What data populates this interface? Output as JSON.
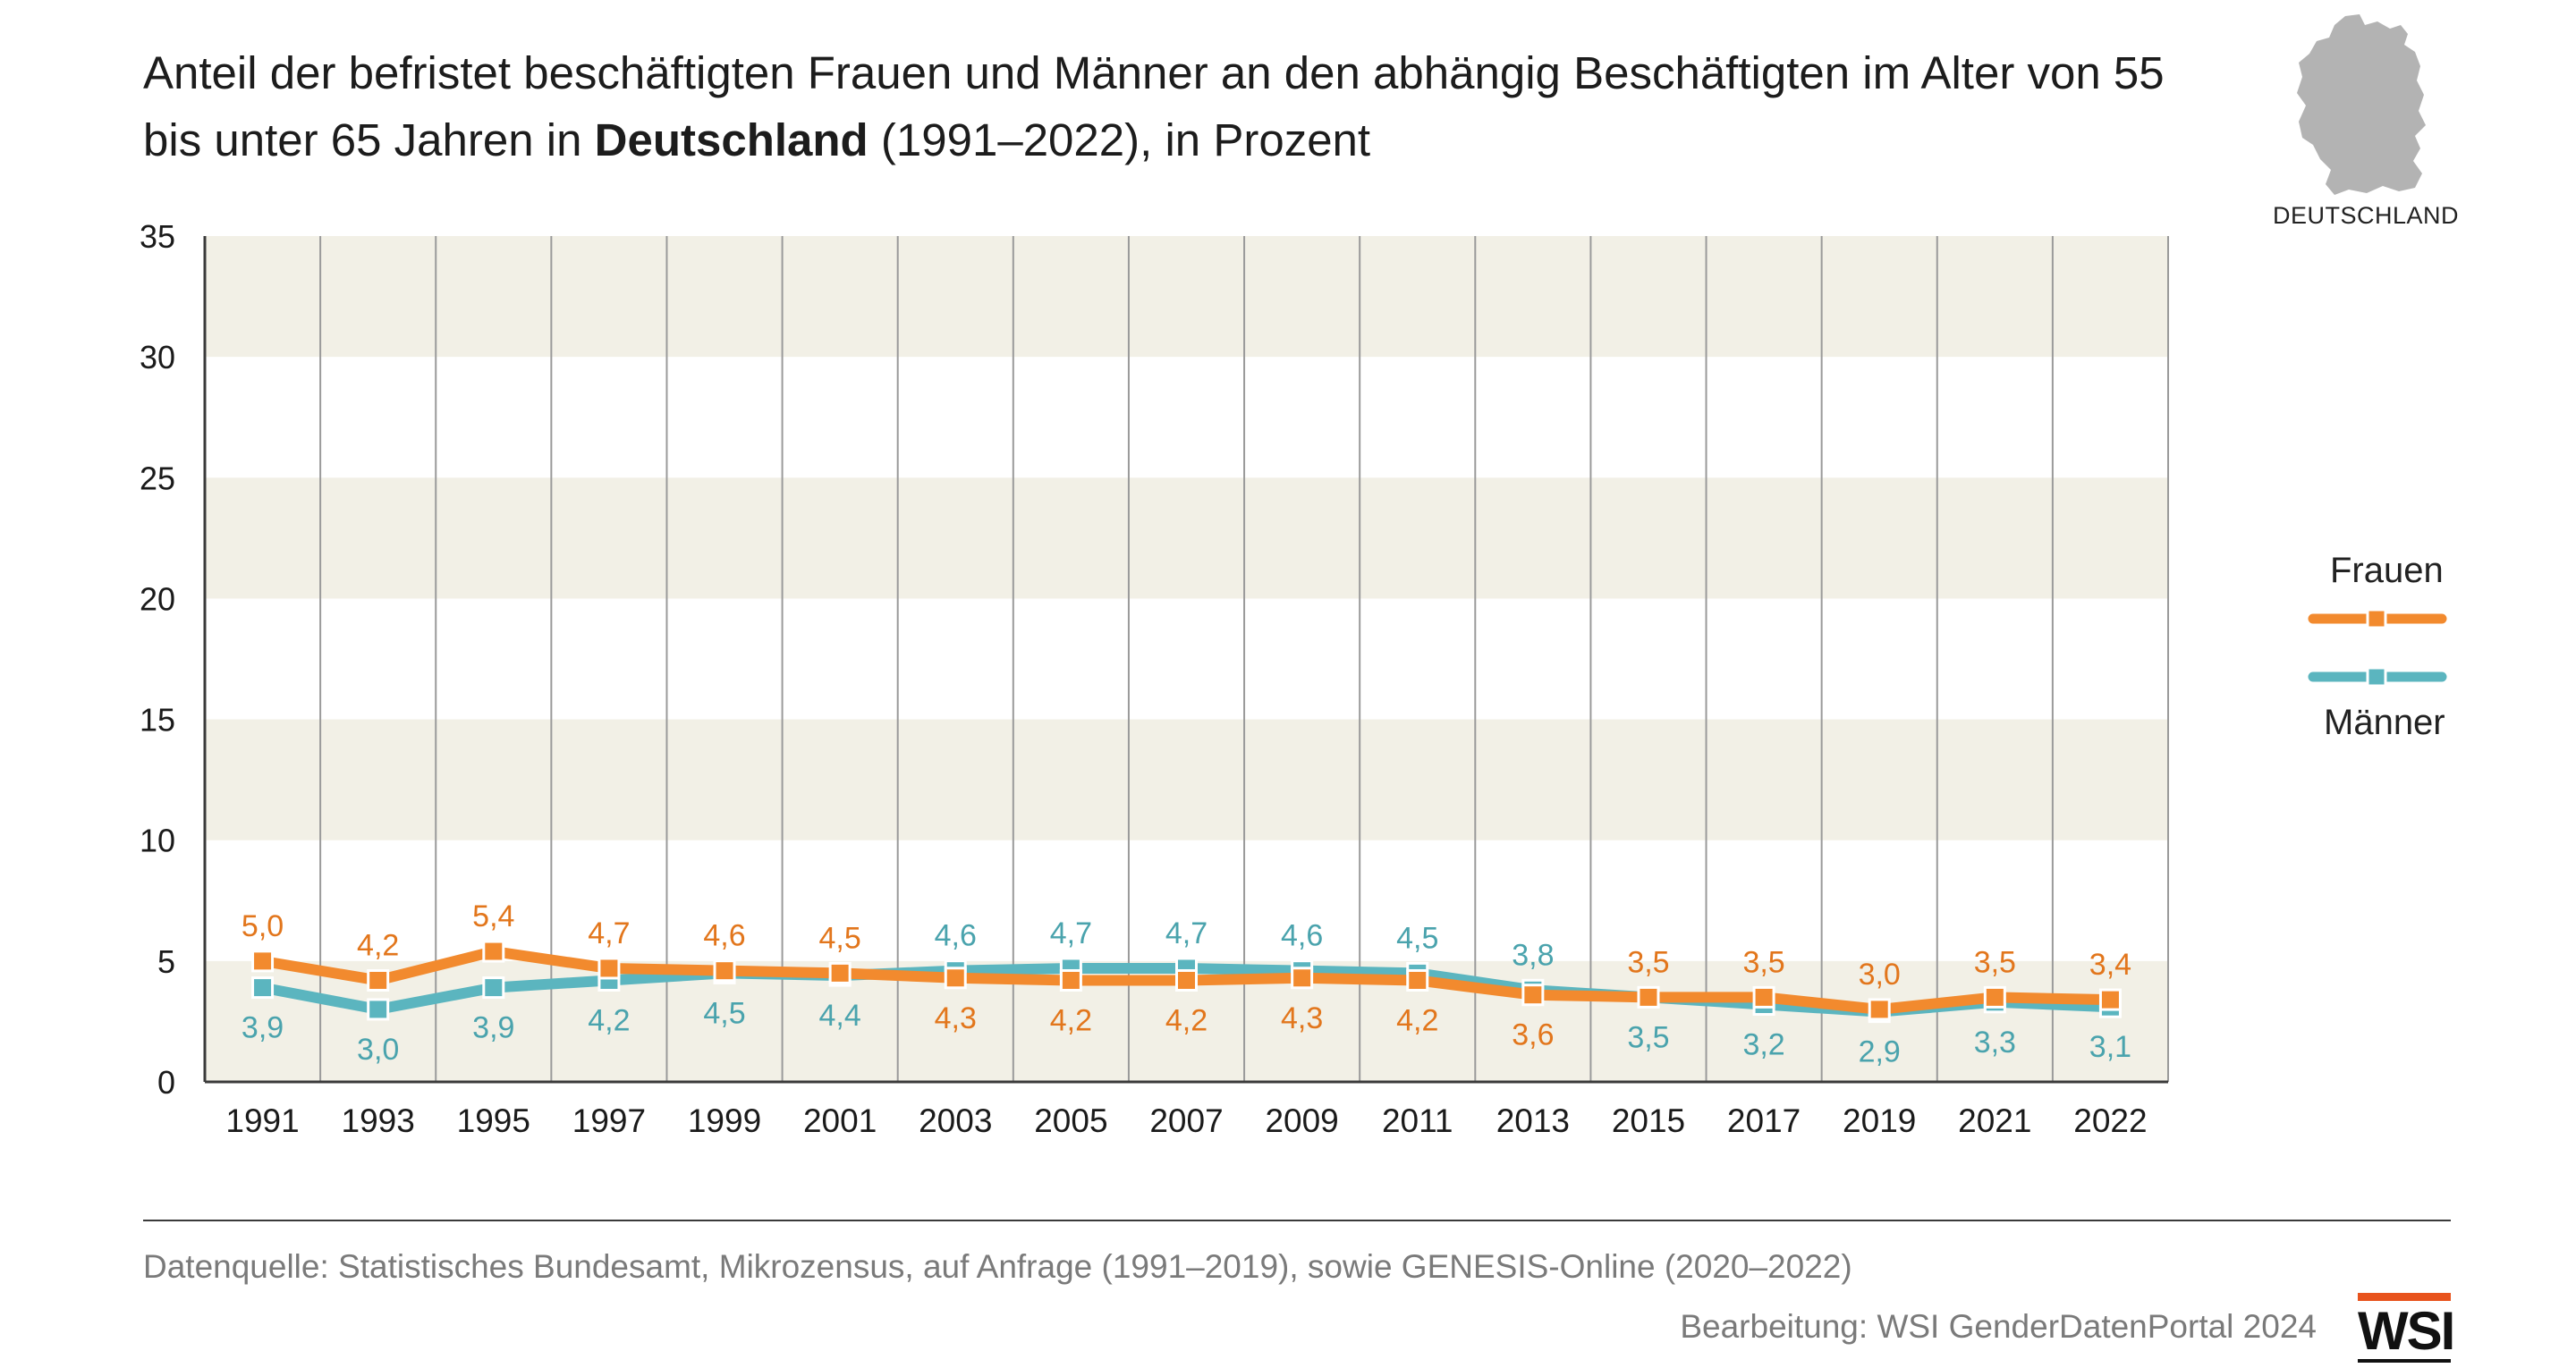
{
  "title": {
    "part1": "Anteil der befristet beschäftigten Frauen und Männer an den abhängig Beschäftigten im Alter von 55 bis unter 65 Jahren in ",
    "bold": "Deutschland",
    "part2": " (1991–2022), in Prozent"
  },
  "map": {
    "caption": "DEUTSCHLAND",
    "color": "#b3b3b3"
  },
  "legend": {
    "frauen": "Frauen",
    "maenner": "Männer"
  },
  "colors": {
    "frauen": "#f28a2e",
    "maenner": "#5bb5bf",
    "band": "#f2f0e6",
    "grid": "#9a9a9a",
    "frauen_label": "#e2761c",
    "maenner_label": "#4aa3ad"
  },
  "footer": {
    "source": "Datenquelle: Statistisches Bundesamt, Mikrozensus, auf Anfrage (1991–2019), sowie GENESIS-Online (2020–2022)",
    "credit": "Bearbeitung: WSI GenderDatenPortal 2024",
    "logo": "WSI"
  },
  "chart_data": {
    "type": "line",
    "x": [
      "1991",
      "1993",
      "1995",
      "1997",
      "1999",
      "2001",
      "2003",
      "2005",
      "2007",
      "2009",
      "2011",
      "2013",
      "2015",
      "2017",
      "2019",
      "2021",
      "2022"
    ],
    "ylim": [
      0,
      35
    ],
    "yticks": [
      0,
      5,
      10,
      15,
      20,
      25,
      30,
      35
    ],
    "ytick_labels": [
      "0",
      "5",
      "10",
      "15",
      "20",
      "25",
      "30",
      "35"
    ],
    "grid": true,
    "legend_position": "right",
    "series": [
      {
        "name": "Frauen",
        "values": [
          5.0,
          4.2,
          5.4,
          4.7,
          4.6,
          4.5,
          4.3,
          4.2,
          4.2,
          4.3,
          4.2,
          3.6,
          3.5,
          3.5,
          3.0,
          3.5,
          3.4
        ],
        "labels": [
          "5,0",
          "4,2",
          "5,4",
          "4,7",
          "4,6",
          "4,5",
          "4,3",
          "4,2",
          "4,2",
          "4,3",
          "4,2",
          "3,6",
          "3,5",
          "3,5",
          "3,0",
          "3,5",
          "3,4"
        ]
      },
      {
        "name": "Männer",
        "values": [
          3.9,
          3.0,
          3.9,
          4.2,
          4.5,
          4.4,
          4.6,
          4.7,
          4.7,
          4.6,
          4.5,
          3.8,
          3.5,
          3.2,
          2.9,
          3.3,
          3.1
        ],
        "labels": [
          "3,9",
          "3,0",
          "3,9",
          "4,2",
          "4,5",
          "4,4",
          "4,6",
          "4,7",
          "4,7",
          "4,6",
          "4,5",
          "3,8",
          "3,5",
          "3,2",
          "2,9",
          "3,3",
          "3,1"
        ]
      }
    ]
  }
}
